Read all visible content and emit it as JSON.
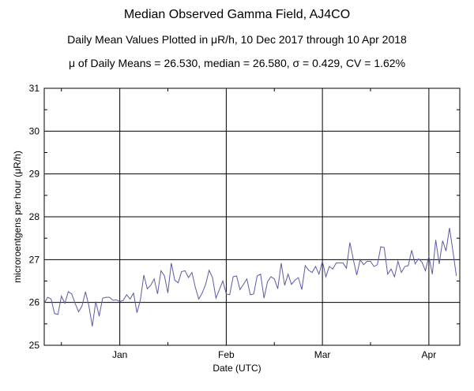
{
  "title": "Median Observed Gamma Field, AJ4CO",
  "subtitle": "Daily Mean Values Plotted in μR/h, 10 Dec 2017 through 10 Apr 2018",
  "stats": "μ of Daily Means = 26.530,   median = 26.580,   σ = 0.429,   CV = 1.62%",
  "colors": {
    "line": "#5a5aa8",
    "grid": "#000000"
  },
  "chart_data": {
    "type": "line",
    "title": "Median Observed Gamma Field, AJ4CO",
    "xlabel": "Date (UTC)",
    "ylabel": "microroentgens per hour (μR/h)",
    "ylim": [
      25,
      31
    ],
    "yticks": [
      25,
      26,
      27,
      28,
      29,
      30,
      31
    ],
    "xlim": [
      "2017-12-10",
      "2018-04-10"
    ],
    "xticks": [
      {
        "date": "2018-01-01",
        "label": "Jan"
      },
      {
        "date": "2018-02-01",
        "label": "Feb"
      },
      {
        "date": "2018-03-01",
        "label": "Mar"
      },
      {
        "date": "2018-04-01",
        "label": "Apr"
      }
    ],
    "grid": true,
    "x_start": "2017-12-10",
    "x_step_days": 1,
    "series": [
      {
        "values": [
          25.98,
          26.12,
          26.08,
          25.74,
          25.72,
          26.15,
          25.98,
          26.25,
          26.2,
          25.98,
          25.78,
          25.92,
          26.25,
          25.92,
          25.44,
          26.02,
          25.68,
          26.1,
          26.12,
          26.12,
          26.05,
          26.06,
          26.02,
          26.05,
          26.18,
          26.08,
          26.22,
          25.76,
          26.06,
          26.64,
          26.32,
          26.4,
          26.55,
          26.2,
          26.74,
          26.62,
          26.22,
          26.92,
          26.52,
          26.46,
          26.72,
          26.74,
          26.58,
          26.7,
          26.35,
          26.08,
          26.22,
          26.42,
          26.75,
          26.58,
          26.1,
          26.3,
          26.5,
          26.2,
          26.18,
          26.6,
          26.62,
          26.3,
          26.42,
          26.55,
          26.18,
          26.2,
          26.62,
          26.66,
          26.1,
          26.48,
          26.6,
          26.55,
          26.32,
          26.92,
          26.4,
          26.66,
          26.42,
          26.52,
          26.58,
          26.3,
          26.86,
          26.75,
          26.7,
          26.84,
          26.66,
          26.96,
          26.6,
          26.84,
          26.78,
          26.92,
          26.92,
          26.92,
          26.8,
          27.4,
          27.0,
          26.64,
          27.0,
          26.88,
          26.96,
          26.96,
          26.84,
          26.88,
          27.3,
          27.28,
          26.66,
          26.78,
          26.6,
          26.96,
          26.7,
          26.84,
          26.86,
          27.22,
          26.9,
          27.02,
          26.94,
          26.74,
          27.08,
          26.66,
          27.46,
          26.9,
          27.44,
          27.2,
          27.74,
          27.2,
          26.62
        ]
      }
    ]
  }
}
